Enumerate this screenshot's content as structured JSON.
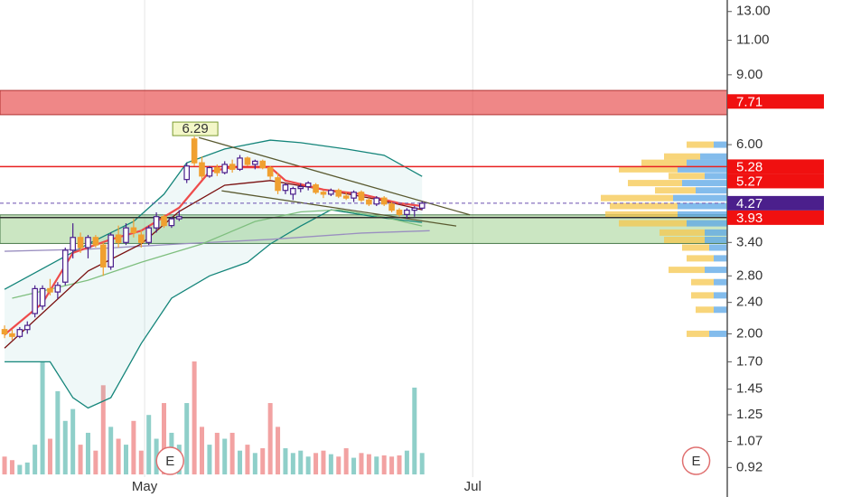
{
  "chart_data": {
    "type": "candlestick",
    "ylog": true,
    "ylim": [
      0.87,
      13.9
    ],
    "yticks": [
      {
        "value": 13,
        "label": "13.00"
      },
      {
        "value": 11,
        "label": "11.00"
      },
      {
        "value": 9,
        "label": "9.00"
      },
      {
        "value": 6,
        "label": "6.00"
      },
      {
        "value": 3.4,
        "label": "3.40"
      },
      {
        "value": 2.8,
        "label": "2.80"
      },
      {
        "value": 2.4,
        "label": "2.40"
      },
      {
        "value": 2,
        "label": "2.00"
      },
      {
        "value": 1.7,
        "label": "1.70"
      },
      {
        "value": 1.45,
        "label": "1.45"
      },
      {
        "value": 1.25,
        "label": "1.25"
      },
      {
        "value": 1.07,
        "label": "1.07"
      },
      {
        "value": 0.92,
        "label": "0.92"
      }
    ],
    "xlim": [
      -0.6,
      95.2
    ],
    "xticks": [
      {
        "value": 18.45,
        "label": "May"
      },
      {
        "value": 61.67,
        "label": "Jul"
      }
    ],
    "grid": true,
    "up_color": "#4b1f8c",
    "down_color": "#f0a030",
    "vol_up_color": "#8fcfc9",
    "vol_down_color": "#f2a2a2",
    "candles": [
      [
        2.05,
        2.1,
        1.95,
        2.0
      ],
      [
        2.0,
        2.05,
        1.93,
        1.97
      ],
      [
        1.97,
        2.08,
        1.95,
        2.05
      ],
      [
        2.05,
        2.15,
        2.0,
        2.1
      ],
      [
        2.25,
        2.65,
        2.2,
        2.6
      ],
      [
        2.35,
        2.65,
        2.3,
        2.6
      ],
      [
        2.6,
        2.75,
        2.5,
        2.55
      ],
      [
        2.55,
        2.7,
        2.45,
        2.65
      ],
      [
        2.7,
        3.3,
        2.65,
        3.25
      ],
      [
        3.25,
        3.8,
        3.1,
        3.5
      ],
      [
        3.5,
        3.6,
        3.2,
        3.3
      ],
      [
        3.3,
        3.55,
        3.1,
        3.5
      ],
      [
        3.5,
        3.55,
        3.3,
        3.35
      ],
      [
        3.35,
        3.4,
        2.8,
        2.95
      ],
      [
        2.95,
        3.6,
        2.9,
        3.55
      ],
      [
        3.55,
        3.75,
        3.3,
        3.4
      ],
      [
        3.4,
        3.8,
        3.35,
        3.7
      ],
      [
        3.7,
        3.9,
        3.5,
        3.6
      ],
      [
        3.55,
        3.65,
        3.3,
        3.4
      ],
      [
        3.4,
        3.75,
        3.35,
        3.7
      ],
      [
        3.7,
        4.05,
        3.6,
        3.95
      ],
      [
        3.95,
        4.0,
        3.7,
        3.75
      ],
      [
        3.75,
        3.95,
        3.7,
        3.9
      ],
      [
        3.9,
        4.1,
        3.85,
        3.95
      ],
      [
        4.9,
        5.4,
        4.8,
        5.3
      ],
      [
        6.2,
        6.29,
        5.3,
        5.4
      ],
      [
        5.4,
        5.6,
        4.9,
        5.0
      ],
      [
        5.0,
        5.3,
        4.95,
        5.25
      ],
      [
        5.25,
        5.35,
        5.0,
        5.1
      ],
      [
        5.1,
        5.45,
        5.05,
        5.35
      ],
      [
        5.35,
        5.5,
        5.1,
        5.2
      ],
      [
        5.2,
        5.65,
        5.15,
        5.55
      ],
      [
        5.55,
        5.6,
        5.3,
        5.35
      ],
      [
        5.35,
        5.5,
        5.2,
        5.45
      ],
      [
        5.45,
        5.5,
        5.2,
        5.25
      ],
      [
        5.25,
        5.3,
        4.9,
        5.0
      ],
      [
        4.95,
        5.1,
        4.5,
        4.6
      ],
      [
        4.6,
        4.8,
        4.5,
        4.75
      ],
      [
        4.5,
        4.7,
        4.35,
        4.65
      ],
      [
        4.65,
        4.8,
        4.55,
        4.7
      ],
      [
        4.7,
        4.85,
        4.6,
        4.8
      ],
      [
        4.75,
        4.8,
        4.5,
        4.55
      ],
      [
        4.55,
        4.6,
        4.4,
        4.5
      ],
      [
        4.5,
        4.65,
        4.45,
        4.6
      ],
      [
        4.6,
        4.65,
        4.4,
        4.45
      ],
      [
        4.45,
        4.55,
        4.35,
        4.4
      ],
      [
        4.4,
        4.6,
        4.3,
        4.55
      ],
      [
        4.55,
        4.6,
        4.3,
        4.35
      ],
      [
        4.35,
        4.4,
        4.2,
        4.25
      ],
      [
        4.25,
        4.45,
        4.2,
        4.4
      ],
      [
        4.4,
        4.45,
        4.2,
        4.25
      ],
      [
        4.25,
        4.3,
        4.05,
        4.1
      ],
      [
        4.1,
        4.15,
        3.95,
        4.0
      ],
      [
        4.0,
        4.15,
        3.9,
        4.1
      ],
      [
        4.1,
        4.2,
        3.95,
        4.15
      ],
      [
        4.15,
        4.32,
        4.1,
        4.27
      ]
    ],
    "volume": [
      15,
      12,
      8,
      10,
      25,
      95,
      30,
      70,
      45,
      55,
      25,
      35,
      20,
      75,
      40,
      30,
      25,
      45,
      20,
      50,
      30,
      60,
      35,
      25,
      60,
      95,
      40,
      25,
      35,
      30,
      35,
      20,
      25,
      18,
      22,
      60,
      40,
      22,
      18,
      20,
      15,
      18,
      20,
      17,
      15,
      22,
      14,
      18,
      17,
      15,
      16,
      15,
      16,
      20,
      73,
      18
    ],
    "lines": [
      {
        "color": "#14857a",
        "x": [
          0,
          11,
          17,
          21,
          24,
          29,
          35,
          39,
          45,
          50,
          55
        ],
        "values": [
          2.59,
          3.37,
          3.84,
          4.5,
          5.4,
          5.85,
          6.16,
          6.07,
          5.85,
          5.64,
          4.99
        ]
      },
      {
        "color": "#14857a",
        "x": [
          0,
          6,
          9,
          11,
          14,
          18,
          22,
          27,
          32,
          35,
          39,
          43,
          49,
          55
        ],
        "values": [
          1.7,
          1.7,
          1.38,
          1.3,
          1.38,
          1.89,
          2.46,
          2.8,
          3.03,
          3.37,
          3.74,
          4.11,
          3.94,
          3.82
        ]
      },
      {
        "color": "#9a8fc0",
        "x": [
          0,
          11,
          23,
          35,
          47,
          56
        ],
        "values": [
          3.23,
          3.27,
          3.37,
          3.46,
          3.59,
          3.64
        ]
      },
      {
        "color": "#7fbf7f",
        "x": [
          1,
          11,
          18,
          26,
          33,
          39,
          44,
          50,
          55
        ],
        "values": [
          2.46,
          2.73,
          3.03,
          3.37,
          3.84,
          4.06,
          4.11,
          3.94,
          3.74
        ]
      },
      {
        "color": "#7a1010",
        "x": [
          0,
          11,
          18,
          23,
          29,
          35,
          42,
          49,
          55
        ],
        "values": [
          1.84,
          2.88,
          3.37,
          4.07,
          4.74,
          4.87,
          4.62,
          4.37,
          4.11
        ]
      },
      {
        "color": "#ee4b4b",
        "x": [
          0,
          5,
          9,
          14,
          18,
          23,
          27,
          30,
          35,
          37,
          42,
          47,
          52,
          55
        ],
        "values": [
          1.99,
          2.39,
          3.2,
          3.46,
          3.64,
          4.16,
          5.13,
          5.26,
          5.26,
          4.87,
          4.62,
          4.5,
          4.27,
          4.2
        ]
      },
      {
        "color": "#5a5a30",
        "x": [
          25.6,
          61.3
        ],
        "values": [
          6.25,
          3.99
        ]
      },
      {
        "color": "#5a5a30",
        "x": [
          28.6,
          59.5
        ],
        "values": [
          4.59,
          3.74
        ]
      }
    ],
    "zones": [
      {
        "range": [
          7.14,
          8.22
        ],
        "color": "rgba(230,70,70,0.65)",
        "edge": "#b03030"
      },
      {
        "range": [
          3.38,
          3.99
        ],
        "color": "rgba(140,200,120,0.45)",
        "edge": "#4a7a4a"
      }
    ],
    "hlines": [
      {
        "value": 5.28,
        "color": "#e82020",
        "dash": false
      },
      {
        "value": 3.93,
        "color": "#303030",
        "dash": false
      },
      {
        "value": 4.27,
        "color": "#6a4fb0",
        "dash": true
      }
    ],
    "levels": [
      {
        "value": 7.71,
        "color": "#f01010"
      },
      {
        "value": 5.28,
        "color": "#f01010"
      },
      {
        "value": 5.27,
        "color": "#f01010"
      },
      {
        "value": 4.27,
        "color": "#4b1f8c"
      },
      {
        "value": 3.93,
        "color": "#f01010"
      }
    ],
    "profile": {
      "prices": [
        6.0,
        5.6,
        5.4,
        5.2,
        5.0,
        4.8,
        4.6,
        4.4,
        4.2,
        4.0,
        3.8,
        3.6,
        3.45,
        3.3,
        3.1,
        2.9,
        2.7,
        2.5,
        2.3,
        2.0
      ],
      "up": [
        15,
        30,
        45,
        55,
        25,
        50,
        35,
        60,
        55,
        55,
        45,
        25,
        25,
        20,
        15,
        25,
        15,
        15,
        15,
        20
      ],
      "down": [
        30,
        40,
        50,
        65,
        40,
        60,
        45,
        80,
        75,
        80,
        75,
        50,
        45,
        30,
        30,
        40,
        25,
        25,
        20,
        25
      ],
      "up_color": "#5aa6e6",
      "down_color": "#f6c74e"
    },
    "earnings": [
      {
        "x": 21.8,
        "label": "E"
      },
      {
        "x": 91.1,
        "label": "E"
      }
    ]
  }
}
